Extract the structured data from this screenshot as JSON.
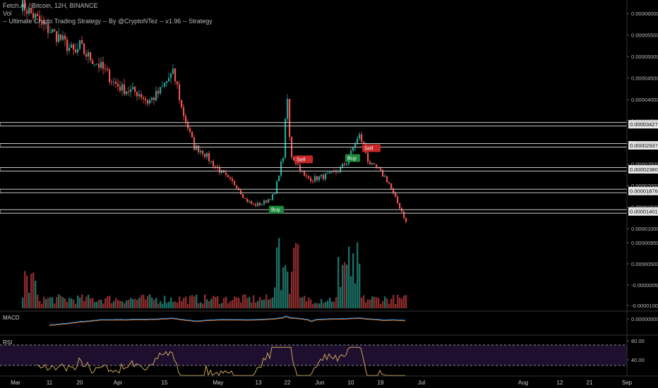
{
  "header": {
    "symbol_line": "Fetch.AI / Bitcoin, 12H, BINANCE",
    "vol_label": "Vol",
    "strategy_line": "-- Ultimate Crypto Trading Strategy -- By @CryptoNTez -- v1.96 -- Strategy"
  },
  "panes": {
    "macd_label": "MACD",
    "rsi_label": "RSI"
  },
  "colors": {
    "up": "#26a69a",
    "down": "#ef5350",
    "vol_up": "#1c6e63",
    "vol_down": "#8a2b2b",
    "macd": "#2196f3",
    "signal": "#ff6d00",
    "rsi": "#c9a55a",
    "rsi_band": "#1e0f2e",
    "level_line": "#c8c8c8",
    "buy": "#1b8a3c",
    "sell": "#c62828"
  },
  "chart_data": [
    {
      "type": "candlestick",
      "title": "Fetch.AI / Bitcoin, 12H, BINANCE",
      "y_axis_ticks": [
        "0.00006000",
        "0.00005500",
        "0.00005000",
        "0.00004500",
        "0.00004000",
        "0.00003500",
        "0.00003000",
        "0.00002500",
        "0.00002000",
        "0.00001500",
        "0.00001000"
      ],
      "ylim": [
        9.7e-06,
        6.15e-05
      ],
      "x_tick_labels": [
        "Mar",
        "11",
        "20",
        "Apr",
        "15",
        "May",
        "13",
        "22",
        "Jun",
        "10",
        "19",
        "Jul",
        "Aug",
        "12",
        "21",
        "Sep"
      ],
      "close_path": [
        [
          0,
          6.25e-05
        ],
        [
          6,
          5.95e-05
        ],
        [
          10,
          5.75e-05
        ],
        [
          14,
          5.6e-05
        ],
        [
          18,
          5.45e-05
        ],
        [
          22,
          5.25e-05
        ],
        [
          26,
          5.05e-05
        ],
        [
          28,
          5.25e-05
        ],
        [
          30,
          5.1e-05
        ],
        [
          32,
          5e-05
        ],
        [
          36,
          4.85e-05
        ],
        [
          40,
          4.65e-05
        ],
        [
          44,
          4.4e-05
        ],
        [
          48,
          4.25e-05
        ],
        [
          52,
          4.2e-05
        ],
        [
          56,
          4.15e-05
        ],
        [
          60,
          3.95e-05
        ],
        [
          63,
          4.05e-05
        ],
        [
          66,
          4.2e-05
        ],
        [
          70,
          4.5e-05
        ],
        [
          72,
          4.6e-05
        ],
        [
          74,
          4.3e-05
        ],
        [
          76,
          3.8e-05
        ],
        [
          78,
          3.5e-05
        ],
        [
          80,
          3.2e-05
        ],
        [
          82,
          2.9e-05
        ],
        [
          86,
          2.8e-05
        ],
        [
          90,
          2.55e-05
        ],
        [
          94,
          2.35e-05
        ],
        [
          98,
          2.15e-05
        ],
        [
          102,
          2e-05
        ],
        [
          104,
          1.85e-05
        ],
        [
          106,
          1.68e-05
        ],
        [
          110,
          1.55e-05
        ],
        [
          114,
          1.58e-05
        ],
        [
          116,
          1.65e-05
        ],
        [
          118,
          1.72e-05
        ],
        [
          120,
          1.8e-05
        ],
        [
          122,
          2.3e-05
        ],
        [
          124,
          2.7e-05
        ],
        [
          125,
          3.45e-05
        ],
        [
          126,
          4e-05
        ],
        [
          127,
          3.1e-05
        ],
        [
          128,
          2.7e-05
        ],
        [
          130,
          2.55e-05
        ],
        [
          132,
          2.4e-05
        ],
        [
          134,
          2.2e-05
        ],
        [
          138,
          2.15e-05
        ],
        [
          142,
          2.2e-05
        ],
        [
          146,
          2.25e-05
        ],
        [
          150,
          2.35e-05
        ],
        [
          154,
          2.55e-05
        ],
        [
          156,
          2.75e-05
        ],
        [
          158,
          3e-05
        ],
        [
          160,
          3.15e-05
        ],
        [
          162,
          2.95e-05
        ],
        [
          164,
          2.6e-05
        ],
        [
          166,
          2.45e-05
        ],
        [
          168,
          2.4e-05
        ],
        [
          170,
          2.3e-05
        ],
        [
          172,
          2.2e-05
        ],
        [
          174,
          2.05e-05
        ],
        [
          176,
          1.8e-05
        ],
        [
          178,
          1.6e-05
        ],
        [
          180,
          1.4e-05
        ],
        [
          182,
          1.15e-05
        ]
      ],
      "levels": [
        "0.00003427",
        "0.00002937",
        "0.00002380",
        "0.00001876",
        "0.00001401"
      ],
      "signals": [
        {
          "label": "Buy",
          "bar": 118,
          "price": 1.45e-05,
          "side": "buy"
        },
        {
          "label": "Sell",
          "bar": 130,
          "price": 2.62e-05,
          "side": "sell"
        },
        {
          "label": "Buy",
          "bar": 154,
          "price": 2.65e-05,
          "side": "buy"
        },
        {
          "label": "Sell",
          "bar": 162,
          "price": 2.88e-05,
          "side": "sell"
        }
      ]
    },
    {
      "type": "bar",
      "series": [
        {
          "name": "Vol"
        }
      ],
      "y_axis_ticks": [
        "0.00000950",
        "0.00000500",
        "-0.00000050",
        "-0.00001000"
      ]
    },
    {
      "type": "line",
      "series": [
        {
          "name": "MACD"
        }
      ],
      "y_axis_ticks": [
        "0.00000000"
      ]
    },
    {
      "type": "line",
      "series": [
        {
          "name": "RSI"
        }
      ],
      "y_axis_ticks": [
        "80.00",
        "40.00"
      ]
    }
  ]
}
